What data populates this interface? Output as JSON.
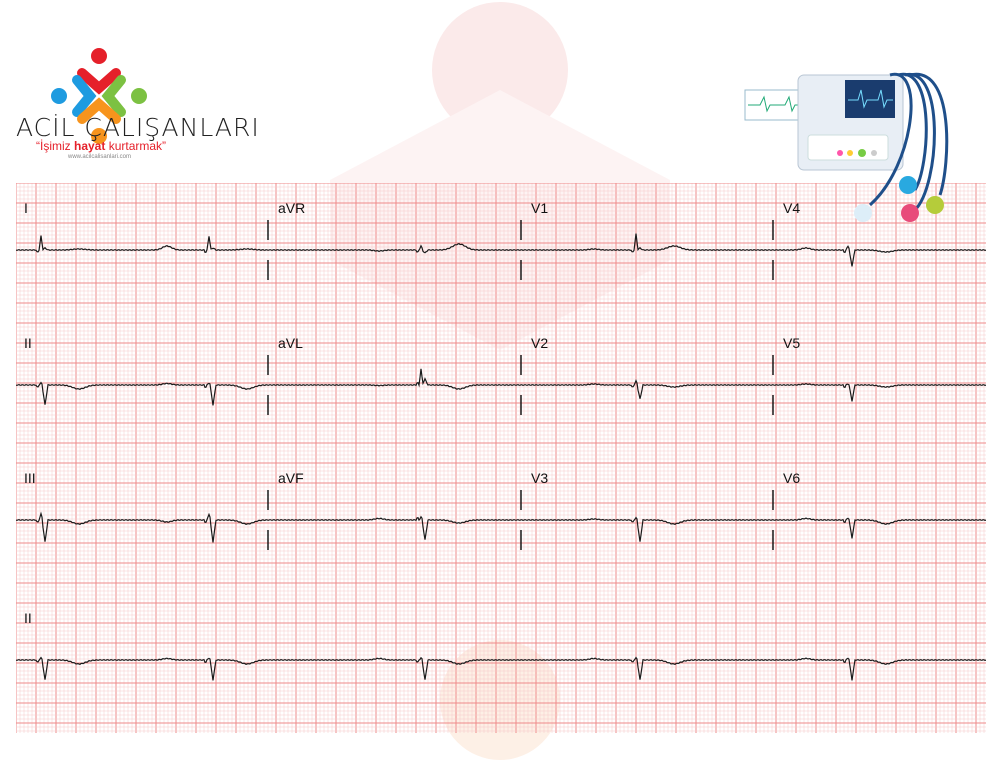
{
  "brand": {
    "name": "ACİL ÇALIŞANLARI",
    "slogan_open": "“İşimiz ",
    "slogan_bold": "hayat",
    "slogan_close": " kurtarmak”",
    "website": "www.acilcalisanlari.com"
  },
  "colors": {
    "grid_minor": "#f6c9c9",
    "grid_major": "#ee8a8a",
    "trace": "#1a1a1a",
    "logo": [
      "#e5202a",
      "#1e9be0",
      "#7cc142",
      "#f7941d"
    ]
  },
  "leads": [
    {
      "label": "I"
    },
    {
      "label": "aVR"
    },
    {
      "label": "V1"
    },
    {
      "label": "V4"
    },
    {
      "label": "II"
    },
    {
      "label": "aVL"
    },
    {
      "label": "V2"
    },
    {
      "label": "V5"
    },
    {
      "label": "III"
    },
    {
      "label": "aVF"
    },
    {
      "label": "V3"
    },
    {
      "label": "V6"
    },
    {
      "label": "II"
    }
  ],
  "illustration": "ecg-machine-with-electrodes"
}
